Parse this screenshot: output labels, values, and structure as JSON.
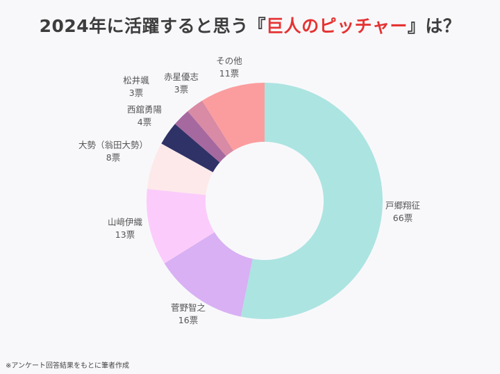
{
  "title": {
    "prefix": "2024年に活躍すると思う『",
    "accent": "巨人のピッチャー",
    "suffix": "』は？"
  },
  "footnote": "※アンケート回答結果をもとに筆者作成",
  "chart_data": {
    "type": "pie",
    "variant": "donut",
    "unit": "票",
    "slices": [
      {
        "label": "戸郷翔征",
        "value": 66,
        "value_label": "66票",
        "color": "#ace4e1"
      },
      {
        "label": "菅野智之",
        "value": 16,
        "value_label": "16票",
        "color": "#d8b0f3"
      },
      {
        "label": "山﨑伊織",
        "value": 13,
        "value_label": "13票",
        "color": "#fbccfb"
      },
      {
        "label": "大勢（翁田大勢）",
        "value": 8,
        "value_label": "8票",
        "color": "#fde9ea"
      },
      {
        "label": "西舘勇陽",
        "value": 4,
        "value_label": "4票",
        "color": "#2f3267"
      },
      {
        "label": "松井颯",
        "value": 3,
        "value_label": "3票",
        "color": "#a5699f"
      },
      {
        "label": "赤星優志",
        "value": 3,
        "value_label": "3票",
        "color": "#d98aa5"
      },
      {
        "label": "その他",
        "value": 11,
        "value_label": "11票",
        "color": "#fb9d9e"
      }
    ]
  }
}
